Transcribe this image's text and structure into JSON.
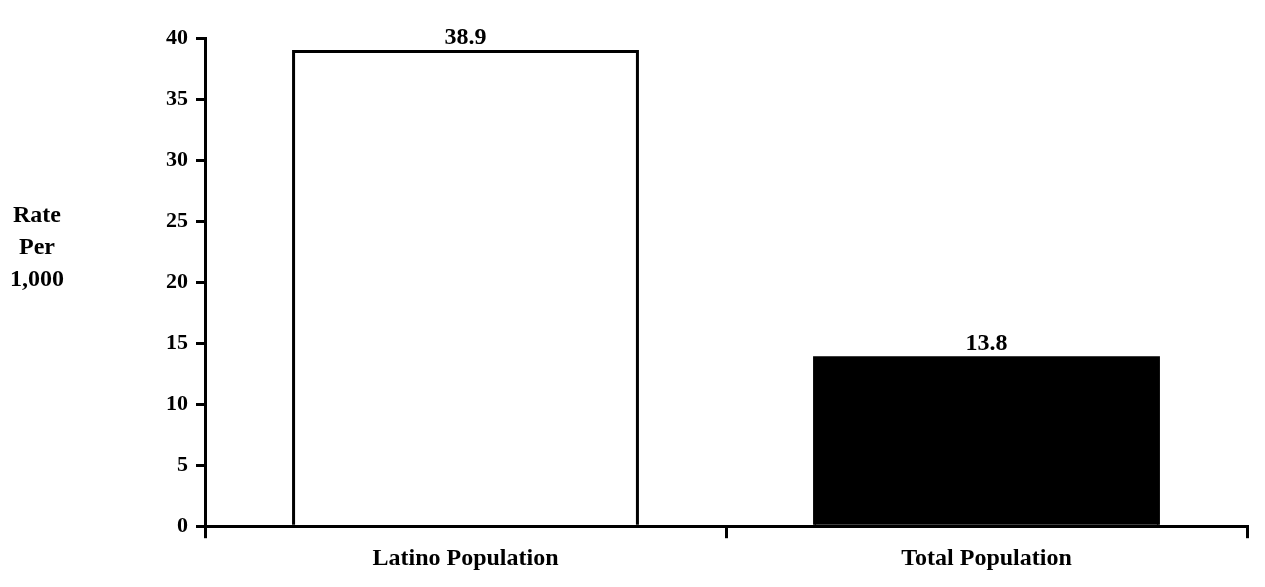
{
  "chart_data": {
    "type": "bar",
    "ylabel": "Rate Per 1,000",
    "categories": [
      "Latino Population",
      "Total Population"
    ],
    "values": [
      38.9,
      13.8
    ],
    "colors": [
      "#ffffff",
      "#000000"
    ],
    "ylim": [
      0,
      40
    ],
    "yticks": [
      0,
      5,
      10,
      15,
      20,
      25,
      30,
      35,
      40
    ],
    "grid": false,
    "legend": false,
    "data_labels": true
  }
}
